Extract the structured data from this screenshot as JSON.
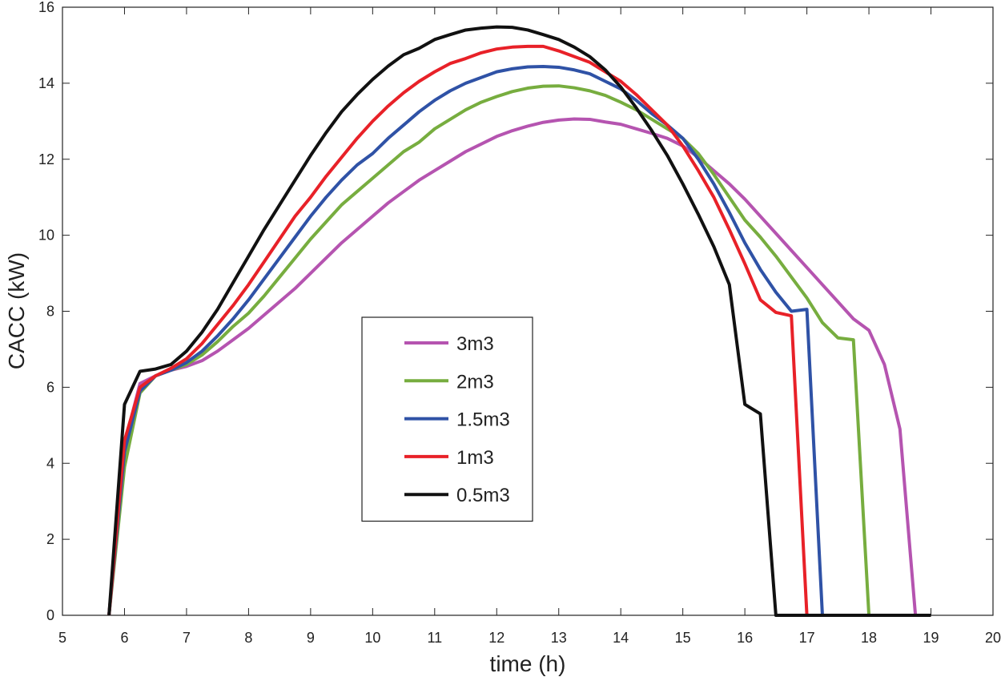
{
  "chart_data": {
    "type": "line",
    "x_label": "time (h)",
    "y_label": "CACC (kW)",
    "x": [
      5.75,
      6,
      6.25,
      6.5,
      6.75,
      7,
      7.25,
      7.5,
      7.75,
      8,
      8.25,
      8.5,
      8.75,
      9,
      9.25,
      9.5,
      9.75,
      10,
      10.25,
      10.5,
      10.75,
      11,
      11.25,
      11.5,
      11.75,
      12,
      12.25,
      12.5,
      12.75,
      13,
      13.25,
      13.5,
      13.75,
      14,
      14.25,
      14.5,
      14.75,
      15,
      15.25,
      15.5,
      15.75,
      16,
      16.25,
      16.5,
      16.75,
      17,
      17.25,
      17.5,
      17.75,
      18,
      18.25,
      18.5,
      18.75,
      19
    ],
    "series": [
      {
        "name": "3m3",
        "color": "#b554b0",
        "values": [
          0,
          4.5,
          6.1,
          6.3,
          6.45,
          6.55,
          6.7,
          6.95,
          7.25,
          7.55,
          7.9,
          8.25,
          8.6,
          9.0,
          9.4,
          9.8,
          10.15,
          10.5,
          10.85,
          11.15,
          11.45,
          11.7,
          11.95,
          12.2,
          12.4,
          12.6,
          12.75,
          12.87,
          12.97,
          13.03,
          13.06,
          13.05,
          12.98,
          12.92,
          12.8,
          12.68,
          12.55,
          12.35,
          12.05,
          11.7,
          11.35,
          10.95,
          10.5,
          10.05,
          9.6,
          9.15,
          8.7,
          8.25,
          7.8,
          7.5,
          6.6,
          4.9,
          0,
          null
        ]
      },
      {
        "name": "2m3",
        "color": "#77ad3f",
        "values": [
          0,
          3.9,
          5.85,
          6.3,
          6.45,
          6.6,
          6.85,
          7.2,
          7.6,
          7.95,
          8.4,
          8.9,
          9.4,
          9.9,
          10.35,
          10.8,
          11.15,
          11.5,
          11.85,
          12.2,
          12.45,
          12.8,
          13.05,
          13.3,
          13.5,
          13.65,
          13.78,
          13.87,
          13.92,
          13.93,
          13.88,
          13.8,
          13.68,
          13.5,
          13.3,
          13.05,
          12.8,
          12.55,
          12.15,
          11.6,
          11.0,
          10.4,
          9.95,
          9.45,
          8.9,
          8.35,
          7.7,
          7.3,
          7.25,
          0,
          null,
          null,
          null,
          null
        ]
      },
      {
        "name": "1.5m3",
        "color": "#2f52a6",
        "values": [
          0,
          4.3,
          5.9,
          6.3,
          6.45,
          6.65,
          6.95,
          7.35,
          7.8,
          8.3,
          8.85,
          9.4,
          9.95,
          10.5,
          11.0,
          11.45,
          11.85,
          12.15,
          12.55,
          12.9,
          13.25,
          13.55,
          13.8,
          14.0,
          14.15,
          14.3,
          14.38,
          14.43,
          14.44,
          14.42,
          14.35,
          14.25,
          14.05,
          13.85,
          13.55,
          13.2,
          12.9,
          12.55,
          12.0,
          11.35,
          10.6,
          9.8,
          9.1,
          8.5,
          8.0,
          8.05,
          0,
          null,
          null,
          null,
          null,
          null,
          null,
          null
        ]
      },
      {
        "name": "1m3",
        "color": "#e82128",
        "values": [
          0,
          4.6,
          6.0,
          6.3,
          6.5,
          6.75,
          7.15,
          7.65,
          8.15,
          8.7,
          9.3,
          9.9,
          10.5,
          11.0,
          11.55,
          12.05,
          12.55,
          13.0,
          13.4,
          13.75,
          14.05,
          14.3,
          14.52,
          14.65,
          14.8,
          14.9,
          14.95,
          14.97,
          14.97,
          14.85,
          14.7,
          14.55,
          14.3,
          14.05,
          13.7,
          13.3,
          12.9,
          12.35,
          11.7,
          11.0,
          10.15,
          9.25,
          8.3,
          7.97,
          7.88,
          0,
          null,
          null,
          null,
          null,
          null,
          null,
          null,
          null
        ]
      },
      {
        "name": "0.5m3",
        "color": "#111111",
        "values": [
          0,
          5.55,
          6.42,
          6.48,
          6.6,
          6.95,
          7.45,
          8.05,
          8.75,
          9.45,
          10.15,
          10.8,
          11.45,
          12.1,
          12.7,
          13.25,
          13.7,
          14.1,
          14.45,
          14.75,
          14.92,
          15.15,
          15.28,
          15.4,
          15.45,
          15.48,
          15.47,
          15.4,
          15.28,
          15.15,
          14.95,
          14.7,
          14.35,
          13.9,
          13.35,
          12.75,
          12.1,
          11.35,
          10.55,
          9.7,
          8.7,
          5.55,
          5.3,
          0,
          0,
          0,
          0,
          0,
          0,
          0,
          0,
          0,
          0,
          0
        ]
      }
    ],
    "xlim": [
      5,
      20
    ],
    "ylim": [
      0,
      16
    ],
    "xticks": [
      5,
      6,
      7,
      8,
      9,
      10,
      11,
      12,
      13,
      14,
      15,
      16,
      17,
      18,
      19,
      20
    ],
    "yticks": [
      0,
      2,
      4,
      6,
      8,
      10,
      12,
      14,
      16
    ],
    "legend": "center",
    "grid": false
  }
}
